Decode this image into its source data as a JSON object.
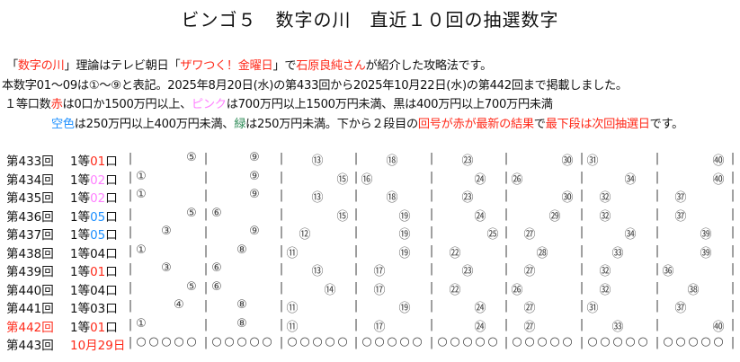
{
  "title": "ビンゴ５　数字の川　直近１０回の抽選数字",
  "intro": {
    "l1": [
      "「",
      "数字の川",
      "」理論はテレビ朝日「",
      "ザワつく！金曜日",
      "」で",
      "石原良純さん",
      "が紹介した攻略法です。"
    ],
    "l2": "本数字01～09は①～⑨と表記。2025年8月20日(水)の第433回から2025年10月22日(水)の第442回まで掲載しました。",
    "l3": [
      "１等口数",
      "赤",
      "は0口か1500万円以上、",
      "ピンク",
      "は700万円以上1500万円未満、黒は400万円以上700万円未満"
    ],
    "l4": [
      "空色",
      "は250万円以上400万円未満、",
      "緑",
      "は250万円未満。下から２段目の",
      "回号が赤が最新の結果",
      "で",
      "最下段は次回抽選日",
      "です。"
    ]
  },
  "colors": {
    "red": "#ff2a1a",
    "pink": "#ff80ff",
    "sky": "#1e90ff",
    "green": "#2e8b57"
  },
  "separator": "|",
  "rows": [
    {
      "round": "第433回",
      "prefix": "1等",
      "count": "01",
      "suffix": "口",
      "color": "red",
      "numbers": [
        5,
        9,
        13,
        18,
        23,
        30,
        31,
        40
      ]
    },
    {
      "round": "第434回",
      "prefix": "1等",
      "count": "02",
      "suffix": "口",
      "color": "pink",
      "numbers": [
        1,
        9,
        15,
        16,
        24,
        26,
        34,
        40
      ]
    },
    {
      "round": "第435回",
      "prefix": "1等",
      "count": "02",
      "suffix": "口",
      "color": "pink",
      "numbers": [
        1,
        9,
        13,
        18,
        23,
        30,
        32,
        37
      ]
    },
    {
      "round": "第436回",
      "prefix": "1等",
      "count": "05",
      "suffix": "口",
      "color": "sky",
      "numbers": [
        5,
        6,
        15,
        19,
        24,
        29,
        32,
        37
      ]
    },
    {
      "round": "第437回",
      "prefix": "1等",
      "count": "05",
      "suffix": "口",
      "color": "sky",
      "numbers": [
        3,
        9,
        12,
        19,
        25,
        27,
        34,
        39
      ]
    },
    {
      "round": "第438回",
      "prefix": "1等",
      "count": "04",
      "suffix": "口",
      "color": "black",
      "numbers": [
        1,
        8,
        11,
        19,
        22,
        28,
        33,
        39
      ]
    },
    {
      "round": "第439回",
      "prefix": "1等",
      "count": "01",
      "suffix": "口",
      "color": "red",
      "numbers": [
        3,
        6,
        13,
        17,
        23,
        27,
        32,
        36
      ]
    },
    {
      "round": "第440回",
      "prefix": "1等",
      "count": "04",
      "suffix": "口",
      "color": "black",
      "numbers": [
        5,
        6,
        14,
        17,
        22,
        26,
        32,
        38
      ]
    },
    {
      "round": "第441回",
      "prefix": "1等",
      "count": "03",
      "suffix": "口",
      "color": "black",
      "numbers": [
        4,
        8,
        11,
        19,
        24,
        27,
        31,
        37
      ]
    },
    {
      "round": "第442回",
      "prefix": "1等",
      "count": "01",
      "suffix": "口",
      "color": "red",
      "latest": true,
      "numbers": [
        1,
        8,
        11,
        17,
        24,
        27,
        33,
        40
      ]
    }
  ],
  "next": {
    "round": "第443回",
    "date": "10月29日",
    "placeholder": "○"
  }
}
